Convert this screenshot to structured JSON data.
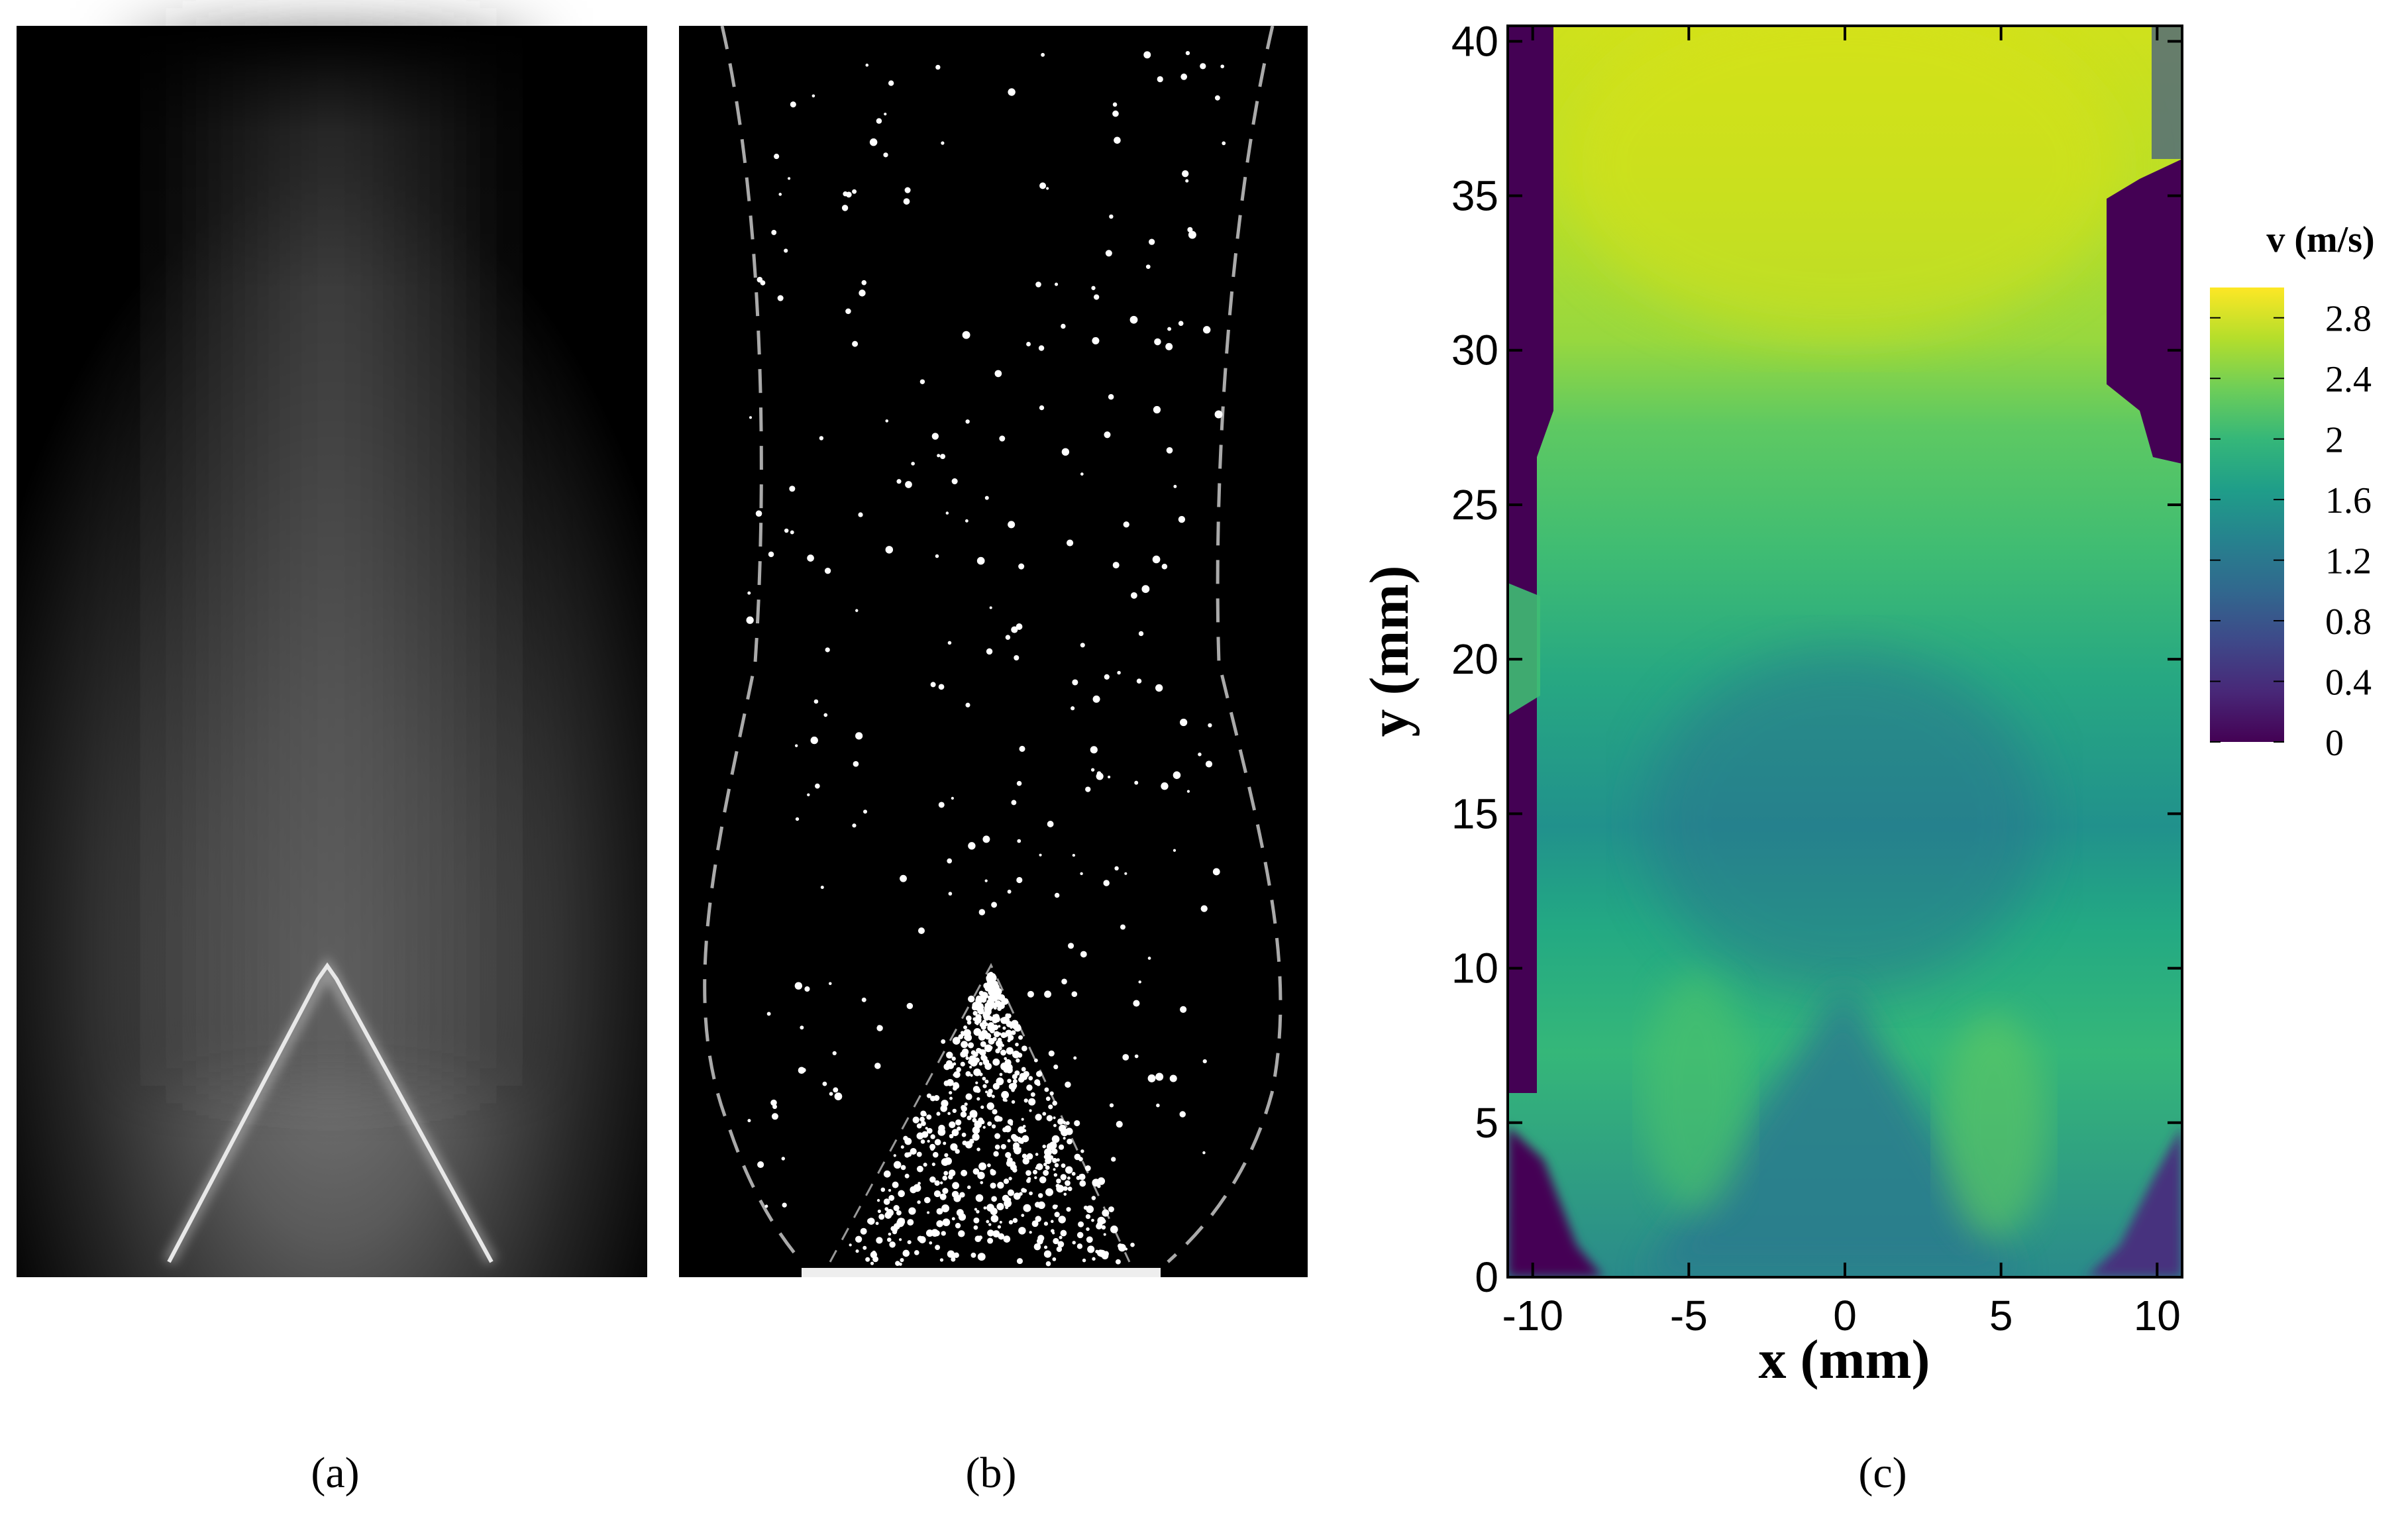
{
  "panels": [
    {
      "label": "(a)"
    },
    {
      "label": "(b)"
    },
    {
      "label": "(c)"
    }
  ],
  "chart_data": {
    "type": "contour",
    "xlabel": "x (mm)",
    "ylabel": "y (mm)",
    "xlim": [
      -10.8,
      10.8
    ],
    "xticks": [
      -10,
      -5,
      0,
      5,
      10
    ],
    "ylim": [
      0,
      40.5
    ],
    "yticks": [
      0,
      5,
      10,
      15,
      20,
      25,
      30,
      35,
      40
    ],
    "colorbar": {
      "title": "v (m/s)",
      "lim": [
        0,
        3
      ],
      "ticks": [
        0,
        0.4,
        0.8,
        1.2,
        1.6,
        2,
        2.4,
        2.8
      ],
      "colormap": "viridis"
    }
  }
}
